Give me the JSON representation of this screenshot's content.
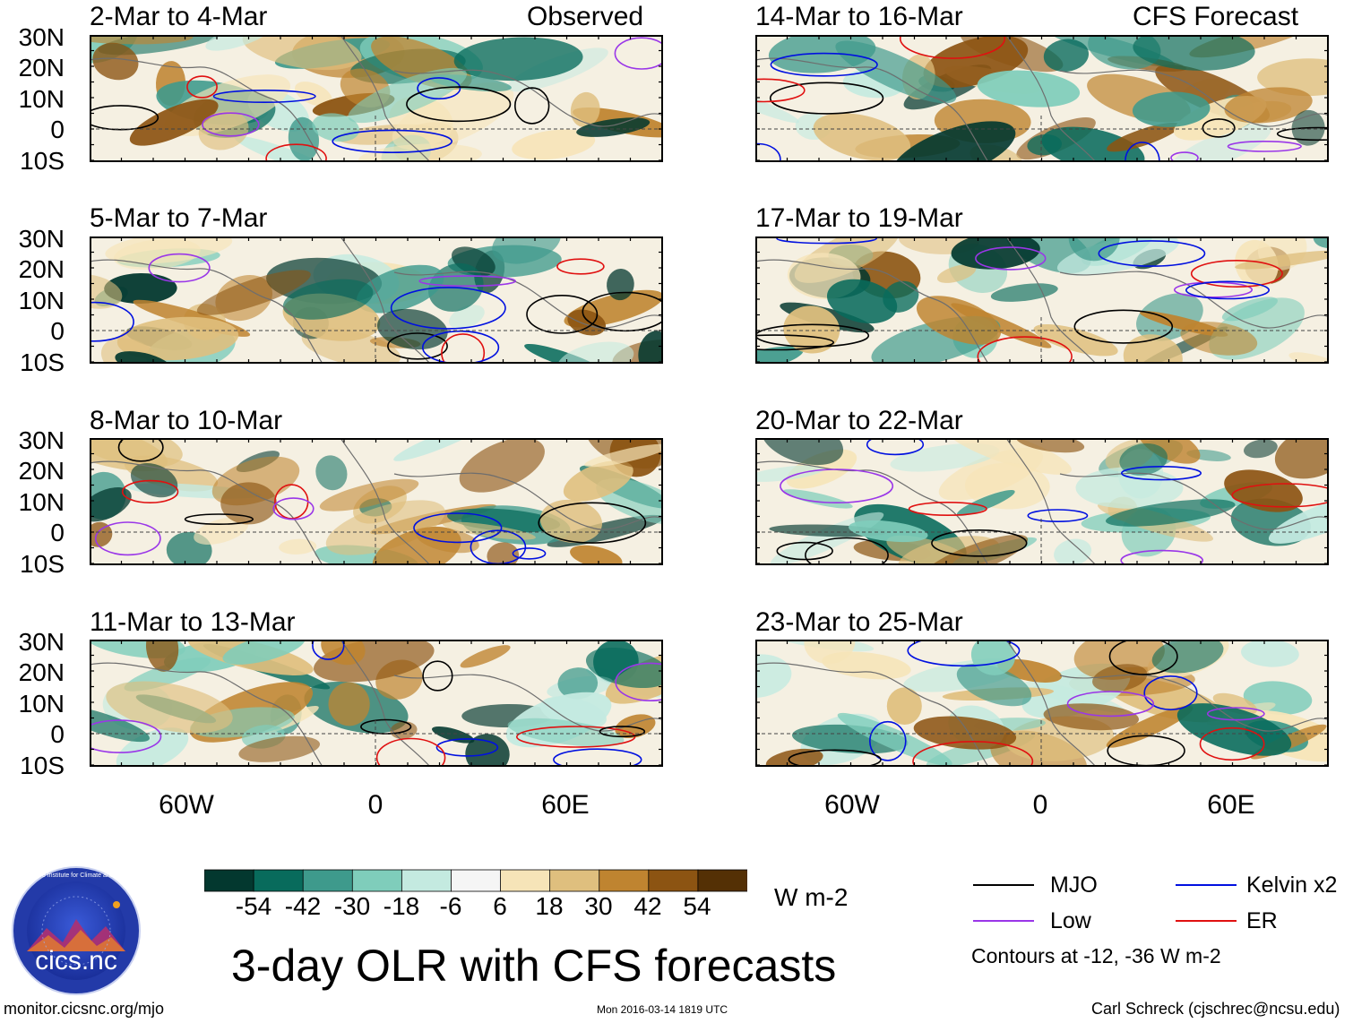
{
  "figure": {
    "title": "3-day OLR with CFS forecasts",
    "observed_label": "Observed",
    "forecast_label": "CFS Forecast",
    "footer_left": "monitor.cicsnc.org/mjo",
    "footer_center": "Mon 2016-03-14 1819 UTC",
    "footer_right": "Carl Schreck (cjschrec@ncsu.edu)",
    "logo": {
      "text": "cics.nc",
      "ring_text": "Cooperative Institute for Climate and Satellites"
    }
  },
  "axes": {
    "lat_labels": [
      "30N",
      "20N",
      "10N",
      "0",
      "10S"
    ],
    "lon_labels": [
      "60W",
      "0",
      "60E"
    ]
  },
  "panels": {
    "observed": [
      {
        "period": "2-Mar to 4-Mar"
      },
      {
        "period": "5-Mar to 7-Mar"
      },
      {
        "period": "8-Mar to 10-Mar"
      },
      {
        "period": "11-Mar to 13-Mar"
      }
    ],
    "forecast": [
      {
        "period": "14-Mar to 16-Mar"
      },
      {
        "period": "17-Mar to 19-Mar"
      },
      {
        "period": "20-Mar to 22-Mar"
      },
      {
        "period": "23-Mar to 25-Mar"
      }
    ]
  },
  "colorbar": {
    "unit": "W m-2",
    "ticks": [
      "-54",
      "-42",
      "-30",
      "-18",
      "-6",
      "6",
      "18",
      "30",
      "42",
      "54"
    ],
    "colors": [
      "#03382f",
      "#086b5c",
      "#3e9a8c",
      "#7fcdbb",
      "#c4eae0",
      "#f5f5f5",
      "#f6e4b8",
      "#dfbf7e",
      "#bf8430",
      "#8c5412",
      "#543005"
    ]
  },
  "legend": {
    "items": [
      {
        "label": "MJO",
        "color": "#000000"
      },
      {
        "label": "Kelvin x2",
        "color": "#0010e0"
      },
      {
        "label": "Low",
        "color": "#9a36e8"
      },
      {
        "label": "ER",
        "color": "#e01010"
      }
    ],
    "note": "Contours at -12, -36 W m-2"
  }
}
